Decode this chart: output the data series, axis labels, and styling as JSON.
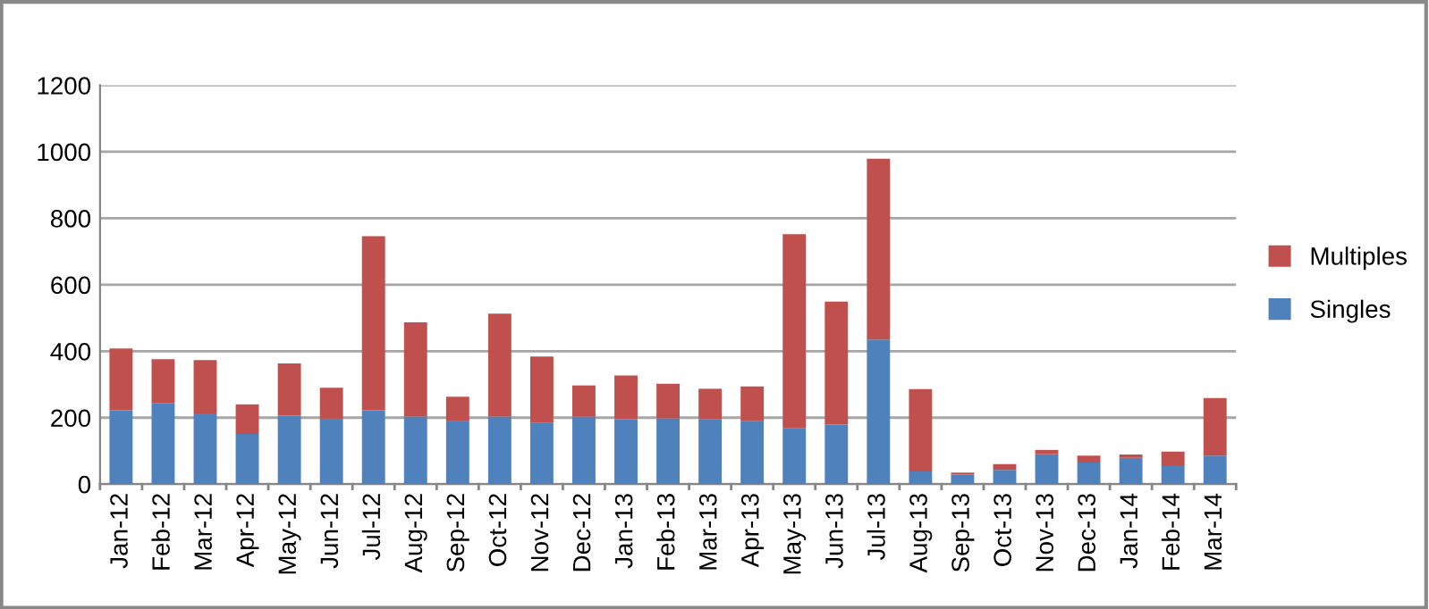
{
  "chart_data": {
    "type": "bar",
    "stacked": true,
    "categories": [
      "Jan-12",
      "Feb-12",
      "Mar-12",
      "Apr-12",
      "May-12",
      "Jun-12",
      "Jul-12",
      "Aug-12",
      "Sep-12",
      "Oct-12",
      "Nov-12",
      "Dec-12",
      "Jan-13",
      "Feb-13",
      "Mar-13",
      "Apr-13",
      "May-13",
      "Jun-13",
      "Jul-13",
      "Aug-13",
      "Sep-13",
      "Oct-13",
      "Nov-13",
      "Dec-13",
      "Jan-14",
      "Feb-14",
      "Mar-14"
    ],
    "series": [
      {
        "name": "Singles",
        "color": "#4f81bd",
        "values": [
          222,
          244,
          213,
          151,
          206,
          197,
          222,
          203,
          189,
          203,
          184,
          203,
          195,
          198,
          195,
          189,
          168,
          179,
          435,
          38,
          29,
          43,
          90,
          65,
          79,
          54,
          86
        ]
      },
      {
        "name": "Multiples",
        "color": "#c0504d",
        "values": [
          186,
          132,
          160,
          89,
          157,
          93,
          524,
          284,
          74,
          310,
          200,
          94,
          132,
          104,
          92,
          105,
          584,
          370,
          544,
          248,
          6,
          17,
          13,
          21,
          10,
          44,
          173
        ]
      }
    ],
    "ylim": [
      0,
      1200
    ],
    "yticks": [
      0,
      200,
      400,
      600,
      800,
      1000,
      1200
    ],
    "grid": "y",
    "legend": "right"
  }
}
